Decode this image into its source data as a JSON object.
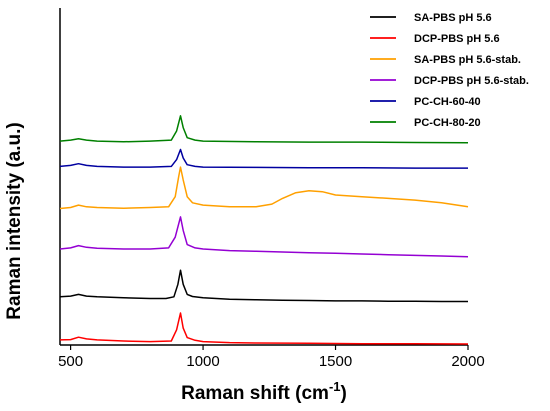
{
  "chart_data": {
    "type": "line",
    "xlabel_main": "Raman shift (cm",
    "xlabel_sup": "-1",
    "xlabel_end": ")",
    "ylabel": "Raman intensity (a.u.)",
    "xlim": [
      460,
      2000
    ],
    "ylim": [
      0,
      10
    ],
    "xticks": [
      {
        "value": 500,
        "label": "500"
      },
      {
        "value": 1000,
        "label": "1000"
      },
      {
        "value": 1500,
        "label": "1500"
      },
      {
        "value": 2000,
        "label": "2000"
      }
    ],
    "y_tick_labels": false,
    "grid": false,
    "legend_position": "top-right",
    "series": [
      {
        "name": "SA-PBS pH 5.6",
        "color": "#000000",
        "points": [
          [
            460,
            1.43
          ],
          [
            500,
            1.45
          ],
          [
            530,
            1.5
          ],
          [
            560,
            1.45
          ],
          [
            600,
            1.43
          ],
          [
            700,
            1.4
          ],
          [
            800,
            1.38
          ],
          [
            860,
            1.38
          ],
          [
            890,
            1.43
          ],
          [
            905,
            1.8
          ],
          [
            915,
            2.22
          ],
          [
            925,
            1.8
          ],
          [
            940,
            1.5
          ],
          [
            960,
            1.44
          ],
          [
            1000,
            1.4
          ],
          [
            1100,
            1.36
          ],
          [
            1200,
            1.34
          ],
          [
            1300,
            1.33
          ],
          [
            1400,
            1.32
          ],
          [
            1500,
            1.31
          ],
          [
            1600,
            1.31
          ],
          [
            1700,
            1.3
          ],
          [
            1800,
            1.3
          ],
          [
            1900,
            1.29
          ],
          [
            2000,
            1.29
          ]
        ]
      },
      {
        "name": "DCP-PBS pH 5.6",
        "color": "#ff0000",
        "points": [
          [
            460,
            0.15
          ],
          [
            500,
            0.16
          ],
          [
            530,
            0.23
          ],
          [
            560,
            0.18
          ],
          [
            600,
            0.15
          ],
          [
            700,
            0.12
          ],
          [
            800,
            0.1
          ],
          [
            880,
            0.12
          ],
          [
            900,
            0.45
          ],
          [
            915,
            0.95
          ],
          [
            925,
            0.5
          ],
          [
            940,
            0.22
          ],
          [
            970,
            0.14
          ],
          [
            1000,
            0.1
          ],
          [
            1100,
            0.07
          ],
          [
            1200,
            0.06
          ],
          [
            1400,
            0.05
          ],
          [
            1600,
            0.04
          ],
          [
            1800,
            0.04
          ],
          [
            2000,
            0.03
          ]
        ]
      },
      {
        "name": "SA-PBS pH 5.6-stab.",
        "color": "#ffa000",
        "points": [
          [
            460,
            4.05
          ],
          [
            500,
            4.08
          ],
          [
            530,
            4.15
          ],
          [
            560,
            4.1
          ],
          [
            600,
            4.08
          ],
          [
            700,
            4.06
          ],
          [
            800,
            4.08
          ],
          [
            870,
            4.1
          ],
          [
            895,
            4.4
          ],
          [
            908,
            5.0
          ],
          [
            915,
            5.28
          ],
          [
            925,
            4.9
          ],
          [
            940,
            4.4
          ],
          [
            960,
            4.22
          ],
          [
            1000,
            4.15
          ],
          [
            1100,
            4.1
          ],
          [
            1200,
            4.1
          ],
          [
            1260,
            4.18
          ],
          [
            1300,
            4.35
          ],
          [
            1350,
            4.52
          ],
          [
            1400,
            4.58
          ],
          [
            1450,
            4.55
          ],
          [
            1500,
            4.45
          ],
          [
            1600,
            4.4
          ],
          [
            1700,
            4.35
          ],
          [
            1800,
            4.3
          ],
          [
            1900,
            4.22
          ],
          [
            2000,
            4.1
          ]
        ]
      },
      {
        "name": "DCP-PBS pH 5.6-stab.",
        "color": "#9400d3",
        "points": [
          [
            460,
            2.85
          ],
          [
            500,
            2.88
          ],
          [
            530,
            2.95
          ],
          [
            560,
            2.9
          ],
          [
            600,
            2.87
          ],
          [
            700,
            2.85
          ],
          [
            800,
            2.85
          ],
          [
            870,
            2.88
          ],
          [
            895,
            3.2
          ],
          [
            915,
            3.8
          ],
          [
            925,
            3.4
          ],
          [
            940,
            2.98
          ],
          [
            970,
            2.88
          ],
          [
            1000,
            2.85
          ],
          [
            1100,
            2.8
          ],
          [
            1200,
            2.78
          ],
          [
            1300,
            2.76
          ],
          [
            1400,
            2.74
          ],
          [
            1500,
            2.72
          ],
          [
            1600,
            2.7
          ],
          [
            1700,
            2.68
          ],
          [
            1800,
            2.66
          ],
          [
            1900,
            2.64
          ],
          [
            2000,
            2.62
          ]
        ]
      },
      {
        "name": "PC-CH-60-40",
        "color": "#0000a0",
        "points": [
          [
            460,
            5.3
          ],
          [
            500,
            5.33
          ],
          [
            530,
            5.38
          ],
          [
            560,
            5.33
          ],
          [
            600,
            5.3
          ],
          [
            700,
            5.28
          ],
          [
            800,
            5.28
          ],
          [
            880,
            5.3
          ],
          [
            900,
            5.5
          ],
          [
            915,
            5.8
          ],
          [
            925,
            5.55
          ],
          [
            940,
            5.35
          ],
          [
            970,
            5.3
          ],
          [
            1000,
            5.28
          ],
          [
            1200,
            5.27
          ],
          [
            1400,
            5.26
          ],
          [
            1600,
            5.26
          ],
          [
            1800,
            5.25
          ],
          [
            2000,
            5.25
          ]
        ]
      },
      {
        "name": "PC-CH-80-20",
        "color": "#008000",
        "points": [
          [
            460,
            6.05
          ],
          [
            500,
            6.08
          ],
          [
            530,
            6.12
          ],
          [
            560,
            6.08
          ],
          [
            600,
            6.05
          ],
          [
            700,
            6.03
          ],
          [
            800,
            6.05
          ],
          [
            880,
            6.08
          ],
          [
            900,
            6.35
          ],
          [
            915,
            6.8
          ],
          [
            925,
            6.45
          ],
          [
            940,
            6.15
          ],
          [
            970,
            6.08
          ],
          [
            1000,
            6.05
          ],
          [
            1200,
            6.03
          ],
          [
            1400,
            6.02
          ],
          [
            1600,
            6.02
          ],
          [
            1800,
            6.01
          ],
          [
            2000,
            6.0
          ]
        ]
      }
    ]
  }
}
